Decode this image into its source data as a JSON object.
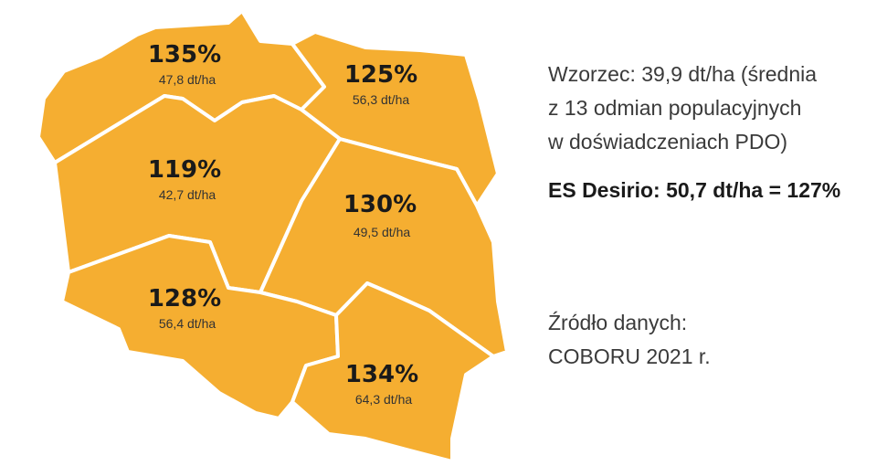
{
  "colors": {
    "region_fill": "#F5AE31",
    "border": "#ffffff",
    "text": "#1a1a1a"
  },
  "regions": [
    {
      "id": "north-west",
      "percent": "135%",
      "yield": "47,8 dt/ha"
    },
    {
      "id": "north-east",
      "percent": "125%",
      "yield": "56,3 dt/ha"
    },
    {
      "id": "central-west",
      "percent": "119%",
      "yield": "42,7 dt/ha"
    },
    {
      "id": "east",
      "percent": "130%",
      "yield": "49,5 dt/ha"
    },
    {
      "id": "south-west",
      "percent": "128%",
      "yield": "56,4 dt/ha"
    },
    {
      "id": "south-east",
      "percent": "134%",
      "yield": "64,3 dt/ha"
    }
  ],
  "info": {
    "reference_lines": [
      "Wzorzec: 39,9 dt/ha (średnia",
      "z 13 odmian populacyjnych",
      "w doświadczeniach PDO)"
    ],
    "variety_result": "ES Desirio: 50,7 dt/ha = 127%",
    "source_lines": [
      "Źródło danych:",
      "COBORU 2021 r."
    ]
  }
}
